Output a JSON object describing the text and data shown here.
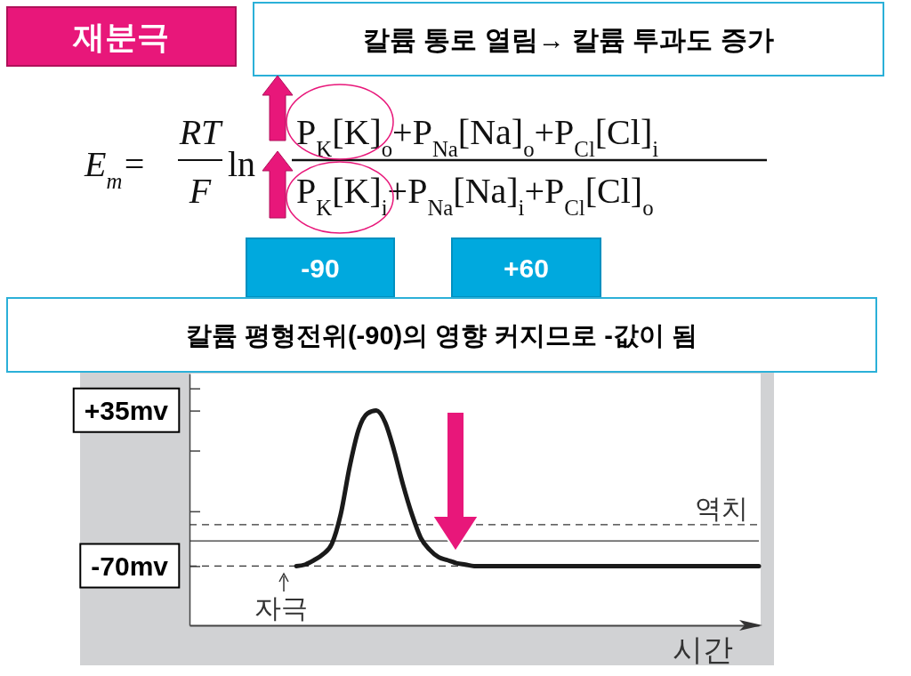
{
  "chart_data": {
    "type": "line",
    "title": "재분극",
    "xlabel": "시간",
    "categories": [
      null,
      null,
      null,
      null,
      null,
      null,
      null,
      null,
      null,
      null,
      null,
      null,
      null,
      null,
      null,
      null,
      null,
      null,
      null,
      null,
      null,
      null,
      null,
      null,
      null,
      null,
      null,
      null,
      null,
      null,
      null,
      null,
      null,
      null,
      null,
      null,
      null,
      null,
      null,
      null,
      null,
      null,
      null,
      null,
      null,
      null,
      null,
      null,
      null,
      null,
      null,
      null,
      null,
      null,
      null,
      null,
      null,
      null,
      null,
      null,
      null,
      null,
      null,
      null,
      null
    ],
    "series": [
      {
        "color": "#1a1a1a",
        "values": [
          null,
          null,
          null,
          null,
          null,
          null,
          null,
          null,
          null,
          null,
          null,
          null,
          -70,
          -69,
          -66,
          -62,
          -55,
          -35,
          -3,
          22,
          33,
          35,
          27,
          8,
          -15,
          -35,
          -51,
          -59,
          -64,
          -66,
          -68,
          -69,
          -70,
          -70,
          -70,
          -70,
          -70,
          -70,
          -70,
          -70,
          -70,
          -70,
          -70,
          -70,
          -70,
          -70,
          -70,
          -70,
          -70,
          -70,
          -70,
          -70,
          -70,
          -70,
          -70,
          -70,
          -70,
          -70,
          -70,
          -70,
          -70,
          -70,
          -70,
          -70,
          -70
        ]
      }
    ],
    "ylim": [
      -110,
      60
    ],
    "yticks": [
      {
        "value": 50,
        "label": null
      },
      {
        "value": 35,
        "label": "+35mv"
      },
      {
        "value": 8,
        "label": null
      },
      {
        "value": -33,
        "label": null
      },
      {
        "value": -70,
        "label": "-70mv"
      }
    ],
    "ref_lines": [
      {
        "axis": "y",
        "value": -42,
        "label": "역치",
        "line_style": "dashed"
      },
      {
        "axis": "y",
        "value": -53,
        "line_style": "solid"
      },
      {
        "axis": "y",
        "value": -70,
        "line_style": "dashed"
      }
    ],
    "marker": "none",
    "line_style": "solid",
    "grid": false,
    "annotations": [
      "칼륨 통로 열림→ 칼륨 투과도 증가",
      "-90",
      "+60",
      "칼륨 평형전위(-90)의 영향 커지므로 -값이 됨",
      "자극",
      "E$_{m}$=",
      "RT",
      "F",
      "ln",
      "P$_{K}$[K]$_{o}$+P$_{Na}$[Na]$_{o}$+P$_{Cl}$[Cl]$_{i}$",
      "P$_{K}$[K]$_{i}$+P$_{Na}$[Na]$_{i}$+P$_{Cl}$[Cl]$_{o}$"
    ]
  }
}
